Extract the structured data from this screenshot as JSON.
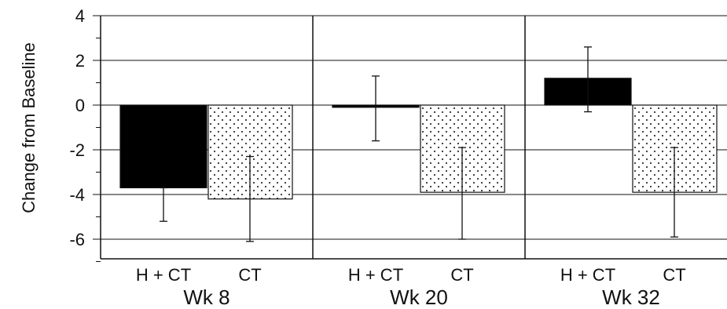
{
  "chart_data": {
    "type": "bar",
    "xlabel": "",
    "ylabel": "Change from Baseline",
    "ylim": [
      -7,
      4
    ],
    "yticks": [
      "4",
      "2",
      "0",
      "-2",
      "-4",
      "-6"
    ],
    "grid": true,
    "legend": "none",
    "groups": [
      {
        "label": "Wk 8",
        "bars": [
          {
            "category": "H + CT",
            "value": -3.7,
            "err_low": -5.2,
            "err_high": -3.7,
            "fill": "solid"
          },
          {
            "category": "CT",
            "value": -4.2,
            "err_low": -6.1,
            "err_high": -2.3,
            "fill": "dotted"
          }
        ]
      },
      {
        "label": "Wk 20",
        "bars": [
          {
            "category": "H + CT",
            "value": -0.1,
            "err_low": -1.6,
            "err_high": 1.3,
            "fill": "solid"
          },
          {
            "category": "CT",
            "value": -3.9,
            "err_low": -6.0,
            "err_high": -1.9,
            "fill": "dotted"
          }
        ]
      },
      {
        "label": "Wk 32",
        "bars": [
          {
            "category": "H + CT",
            "value": 1.2,
            "err_low": -0.3,
            "err_high": 2.6,
            "fill": "solid"
          },
          {
            "category": "CT",
            "value": -3.9,
            "err_low": -5.9,
            "err_high": -1.9,
            "fill": "dotted"
          }
        ]
      }
    ],
    "colors": {
      "solid": "#000000",
      "dotted_bg": "#ffffff",
      "dot": "#333333",
      "axis": "#111111"
    }
  }
}
